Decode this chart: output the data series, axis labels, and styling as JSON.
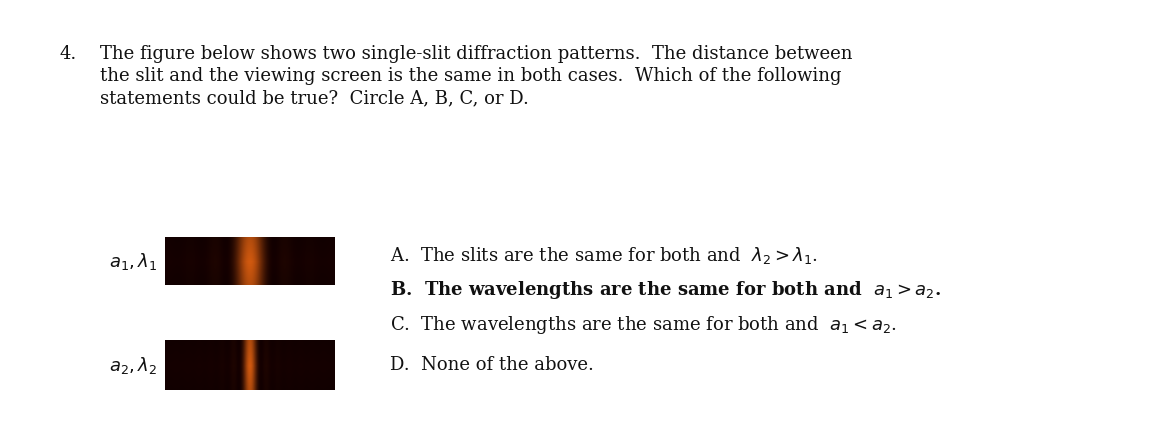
{
  "background_color": "#ffffff",
  "question_number": "4.",
  "question_text_line1": "The figure below shows two single-slit diffraction patterns.  The distance between",
  "question_text_line2": "the slit and the viewing screen is the same in both cases.  Which of the following",
  "question_text_line3": "statements could be true?  Circle A, B, C, or D.",
  "pattern1_label": "$a_1, \\lambda_1$",
  "pattern2_label": "$a_2, \\lambda_2$",
  "answer_A": "A.  The slits are the same for both and  $\\lambda_2 > \\lambda_1$.",
  "answer_B": "B.  The wavelengths are the same for both and  $a_1 > a_2$.",
  "answer_C": "C.  The wavelengths are the same for both and  $a_1 < a_2$.",
  "answer_D": "D.  None of the above.",
  "fig_width": 11.69,
  "fig_height": 4.22,
  "text_fontsize": 13,
  "pattern1_fringes": 3,
  "pattern2_fringes": 7
}
